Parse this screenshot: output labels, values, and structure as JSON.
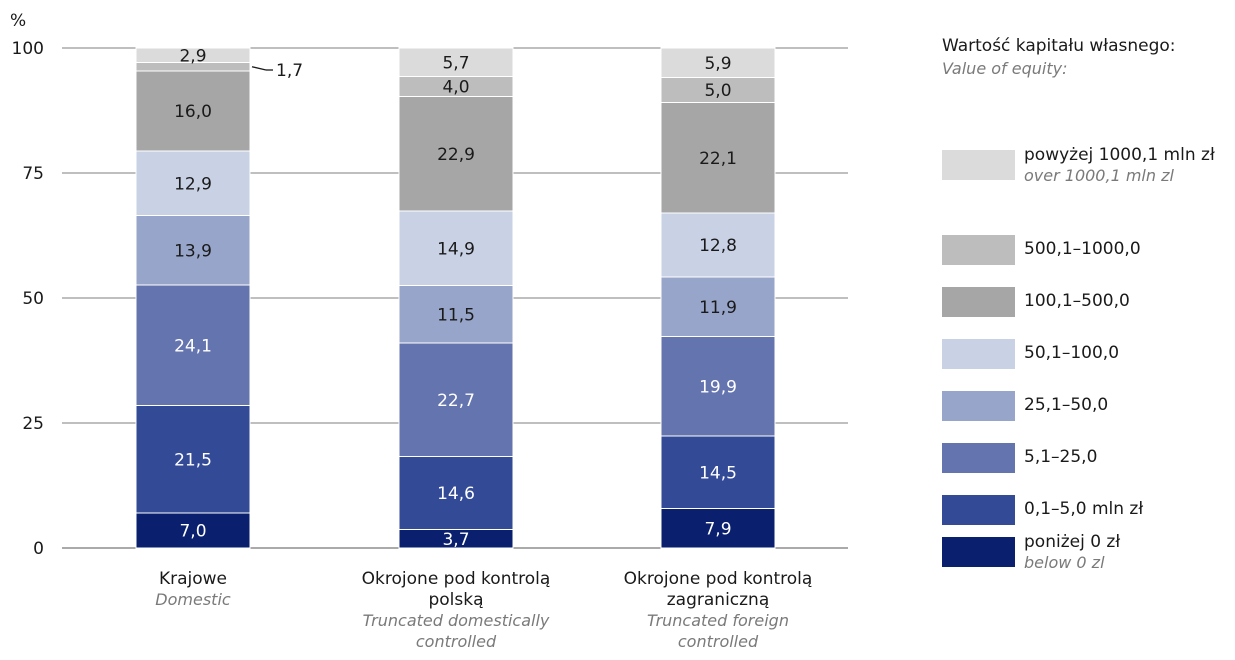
{
  "chart_data": {
    "type": "bar",
    "stacked": true,
    "ylabel": "%",
    "ylim": [
      0,
      100
    ],
    "yticks": [
      "0",
      "25",
      "50",
      "75",
      "100"
    ],
    "grid": true,
    "categories": [
      {
        "label": "Krajowe",
        "label_en": "Domestic"
      },
      {
        "label": "Okrojone pod kontrolą polską",
        "label_en": "Truncated domestically controlled"
      },
      {
        "label": "Okrojone pod kontrolą zagraniczną",
        "label_en": "Truncated foreign controlled"
      }
    ],
    "series": [
      {
        "name": "poniżej 0 zł",
        "name_en": "below 0 zl",
        "color": "#0a1f6e",
        "values": [
          7.0,
          3.7,
          7.9
        ],
        "labels": [
          "7,0",
          "3,7",
          "7,9"
        ]
      },
      {
        "name": "0,1–5,0 mln zł",
        "color": "#334a97",
        "values": [
          21.5,
          14.6,
          14.5
        ],
        "labels": [
          "21,5",
          "14,6",
          "14,5"
        ]
      },
      {
        "name": "5,1–25,0",
        "color": "#6474ae",
        "values": [
          24.1,
          22.7,
          19.9
        ],
        "labels": [
          "24,1",
          "22,7",
          "19,9"
        ]
      },
      {
        "name": "25,1–50,0",
        "color": "#98a5ca",
        "values": [
          13.9,
          11.5,
          11.9
        ],
        "labels": [
          "13,9",
          "11,5",
          "11,9"
        ]
      },
      {
        "name": "50,1–100,0",
        "color": "#c9d1e5",
        "values": [
          12.9,
          14.9,
          12.8
        ],
        "labels": [
          "12,9",
          "14,9",
          "12,8"
        ]
      },
      {
        "name": "100,1–500,0",
        "color": "#a6a6a6",
        "values": [
          16.0,
          22.9,
          22.1
        ],
        "labels": [
          "16,0",
          "22,9",
          "22,1"
        ]
      },
      {
        "name": "500,1–1000,0",
        "color": "#bdbdbd",
        "values": [
          1.7,
          4.0,
          5.0
        ],
        "labels": [
          "1,7",
          "4,0",
          "5,0"
        ]
      },
      {
        "name": "powyżej 1000,1 mln zł",
        "name_en": "over 1000,1 mln zl",
        "color": "#dbdbdb",
        "values": [
          2.9,
          5.7,
          5.9
        ],
        "labels": [
          "2,9",
          "5,7",
          "5,9"
        ]
      }
    ],
    "legend": {
      "title": "Wartość kapitału własnego:",
      "title_en": "Value of equity:",
      "position": "right",
      "order": [
        "powyżej 1000,1 mln zł",
        "500,1–1000,0",
        "100,1–500,0",
        "50,1–100,0",
        "25,1–50,0",
        "5,1–25,0",
        "0,1–5,0 mln zł",
        "poniżej 0 zł"
      ]
    }
  }
}
